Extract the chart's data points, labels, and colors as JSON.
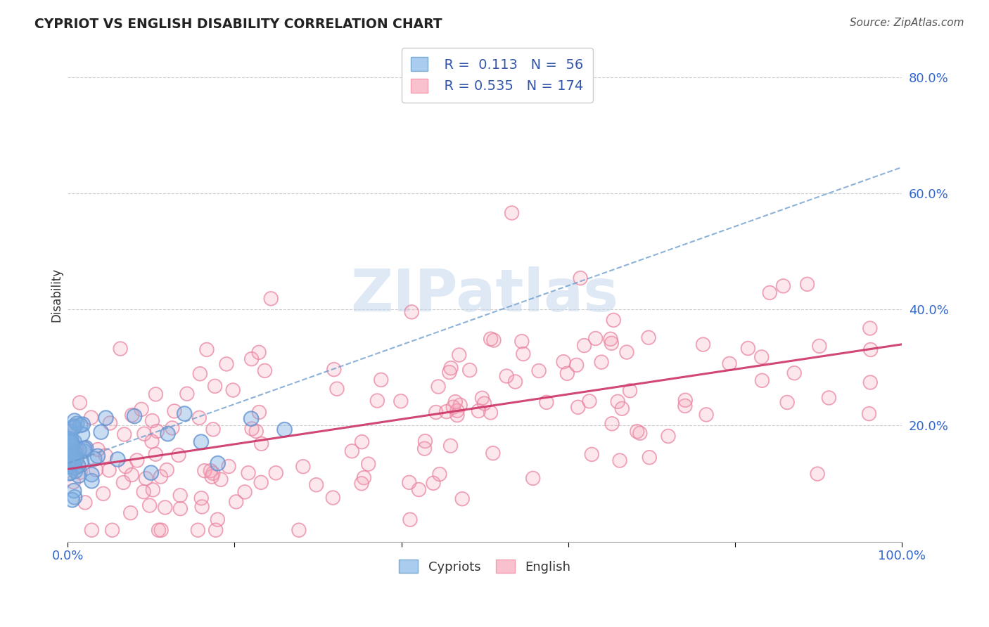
{
  "title": "CYPRIOT VS ENGLISH DISABILITY CORRELATION CHART",
  "source": "Source: ZipAtlas.com",
  "ylabel": "Disability",
  "xlim": [
    0,
    1.0
  ],
  "ylim": [
    0,
    0.85
  ],
  "cypriot_R": 0.113,
  "cypriot_N": 56,
  "english_R": 0.535,
  "english_N": 174,
  "cypriot_color": "#7aace0",
  "english_color": "#f4a0b5",
  "cypriot_edge_color": "#5588cc",
  "english_edge_color": "#e87898",
  "cypriot_trendline_color": "#6699cc",
  "english_trendline_color": "#cc3366",
  "background_color": "#ffffff",
  "watermark": "ZIPatlas",
  "legend_color": "#3355aa",
  "grid_color": "#cccccc",
  "title_color": "#222222",
  "source_color": "#555555",
  "ylabel_color": "#333333",
  "tick_color": "#3366cc"
}
